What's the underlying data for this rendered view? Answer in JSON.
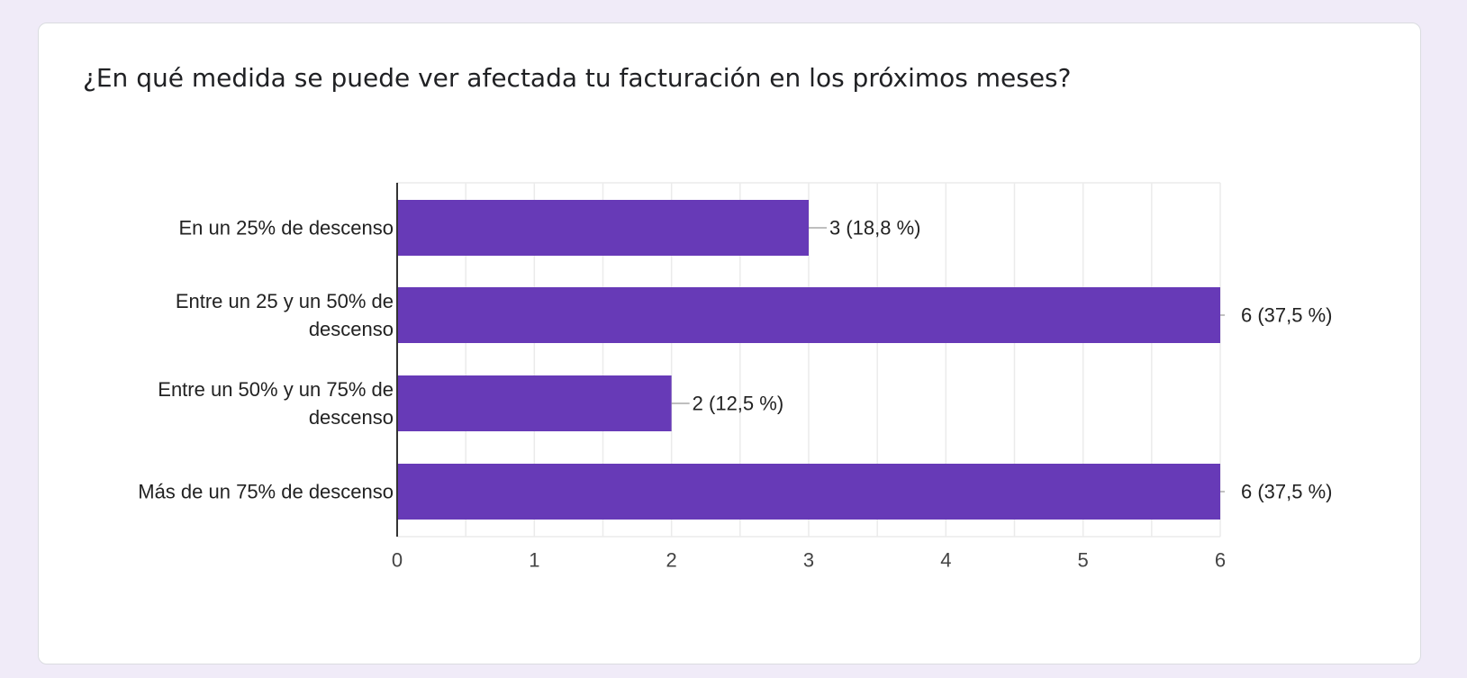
{
  "question": {
    "title": "¿En qué medida se puede ver afectada tu facturación en los próximos meses?"
  },
  "colors": {
    "background": "#f0ebf8",
    "bar": "#673ab7",
    "grid": "#ebebeb",
    "axis": "#333333"
  },
  "chart_data": {
    "type": "bar",
    "orientation": "horizontal",
    "categories": [
      [
        "En un 25% de descenso"
      ],
      [
        "Entre un 25 y un 50% de",
        "descenso"
      ],
      [
        "Entre un 50% y un 75% de",
        "descenso"
      ],
      [
        "Más de un 75% de descenso"
      ]
    ],
    "values": [
      3,
      6,
      2,
      6
    ],
    "data_labels": [
      "3 (18,8 %)",
      "6 (37,5 %)",
      "2 (12,5 %)",
      "6 (37,5 %)"
    ],
    "xlim": [
      0,
      6
    ],
    "xticks": [
      0,
      1,
      2,
      3,
      4,
      5,
      6
    ],
    "grid": true,
    "title": "",
    "xlabel": "",
    "ylabel": ""
  }
}
